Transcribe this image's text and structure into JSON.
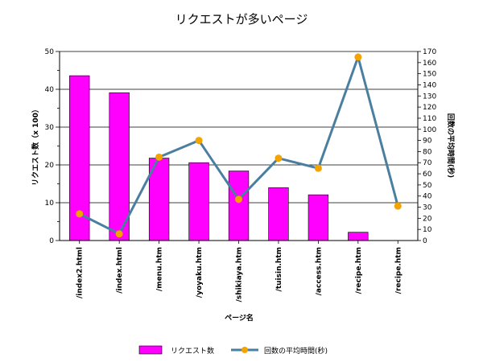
{
  "chart_data": {
    "type": "bar",
    "title": "リクエストが多いページ",
    "xlabel": "ページ名",
    "ylabel_left": "リクエスト数（x 100）",
    "ylabel_right": "回数の平均時間(秒)",
    "categories": [
      "/index2.html",
      "/index.html",
      "/menu.htm",
      "/yoyaku.htm",
      "/shikiaya.htm",
      "/tuisin.htm",
      "/access.htm",
      "/recipe.htm",
      "/recipe.htm"
    ],
    "ylim_left": [
      0,
      50
    ],
    "yticks_left": [
      0,
      10,
      20,
      30,
      40,
      50
    ],
    "ylim_right": [
      0,
      170
    ],
    "yticks_right": [
      0,
      10,
      20,
      30,
      40,
      50,
      60,
      70,
      80,
      90,
      100,
      110,
      120,
      130,
      140,
      150,
      160,
      170
    ],
    "grid": true,
    "legend_position": "bottom",
    "series": [
      {
        "name": "リクエスト数",
        "type": "bar",
        "axis": "left",
        "color": "#ff00ff",
        "values": [
          43.6,
          39.1,
          21.8,
          20.6,
          18.4,
          14.0,
          12.1,
          2.2,
          0
        ]
      },
      {
        "name": "回数の平均時間(秒)",
        "type": "line",
        "axis": "right",
        "line_color": "#4a7fa0",
        "marker_color": "#f5a300",
        "values": [
          24,
          6,
          75,
          90,
          37,
          74,
          65,
          165,
          31
        ]
      }
    ]
  }
}
